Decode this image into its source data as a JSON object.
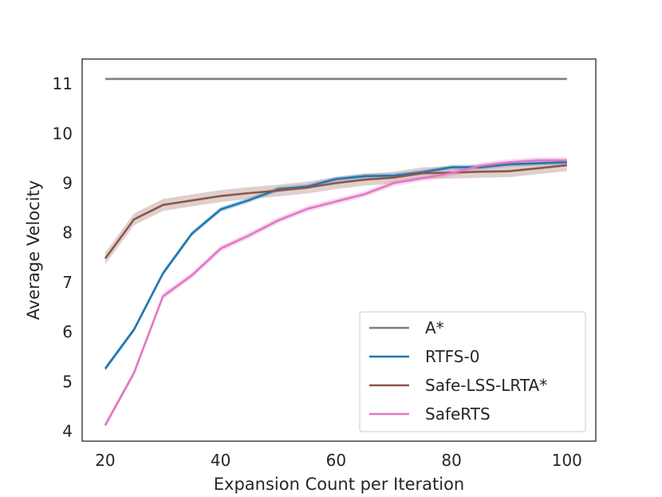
{
  "chart_data": {
    "type": "line",
    "xlabel": "Expansion Count per Iteration",
    "ylabel": "Average Velocity",
    "xlim": [
      16,
      105
    ],
    "ylim": [
      3.8,
      11.5
    ],
    "xticks": [
      20,
      40,
      60,
      80,
      100
    ],
    "yticks": [
      4,
      5,
      6,
      7,
      8,
      9,
      10,
      11
    ],
    "grid": false,
    "legend_position": "lower-right",
    "series": [
      {
        "name": "A*",
        "color": "#7f7f7f",
        "x": [
          20,
          100
        ],
        "y": [
          11.1,
          11.1
        ],
        "band": 0
      },
      {
        "name": "RTFS-0",
        "color": "#1f77b4",
        "x": [
          20,
          25,
          30,
          35,
          40,
          45,
          50,
          55,
          60,
          65,
          70,
          75,
          80,
          85,
          90,
          95,
          100
        ],
        "y": [
          5.26,
          6.05,
          7.18,
          7.98,
          8.47,
          8.66,
          8.88,
          8.93,
          9.08,
          9.14,
          9.15,
          9.22,
          9.32,
          9.32,
          9.38,
          9.4,
          9.42
        ],
        "band": 0.05
      },
      {
        "name": "Safe-LSS-LRTA*",
        "color": "#8c564b",
        "x": [
          20,
          25,
          30,
          35,
          40,
          45,
          50,
          55,
          60,
          65,
          70,
          75,
          80,
          85,
          90,
          95,
          100
        ],
        "y": [
          7.48,
          8.27,
          8.56,
          8.65,
          8.74,
          8.8,
          8.85,
          8.91,
          9.0,
          9.07,
          9.11,
          9.2,
          9.21,
          9.23,
          9.24,
          9.3,
          9.36
        ],
        "band": 0.12
      },
      {
        "name": "SafeRTS",
        "color": "#e377c2",
        "x": [
          20,
          25,
          30,
          35,
          40,
          45,
          50,
          55,
          60,
          65,
          70,
          75,
          80,
          85,
          90,
          95,
          100
        ],
        "y": [
          4.12,
          5.18,
          6.72,
          7.14,
          7.68,
          7.95,
          8.25,
          8.48,
          8.63,
          8.78,
          9.0,
          9.1,
          9.2,
          9.35,
          9.42,
          9.46,
          9.46
        ],
        "band": 0.06
      }
    ]
  }
}
